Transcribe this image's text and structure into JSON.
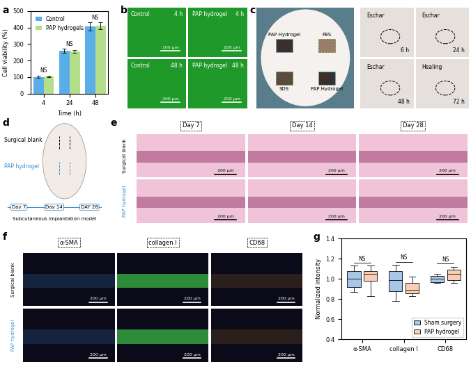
{
  "chart_data": [
    {
      "panel": "a",
      "type": "bar",
      "categories": [
        "4",
        "24",
        "48"
      ],
      "x_label": "Time (h)",
      "y_label": "Cell viability (%)",
      "ylim": [
        0,
        500
      ],
      "yticks": [
        0,
        100,
        200,
        300,
        400,
        500
      ],
      "legend": "upper left",
      "series": [
        {
          "name": "Control",
          "color": "#5aaee8",
          "values": [
            100,
            258,
            405
          ],
          "errors": [
            6,
            12,
            25
          ]
        },
        {
          "name": "PAP hydrogels",
          "color": "#b5de8c",
          "values": [
            104,
            255,
            410
          ],
          "errors": [
            6,
            10,
            20
          ]
        }
      ],
      "annotations": [
        "NS",
        "NS",
        "NS"
      ]
    },
    {
      "panel": "g",
      "type": "box",
      "categories": [
        "α-SMA",
        "collagen I",
        "CD68"
      ],
      "y_label": "Normalized intensity",
      "ylim": [
        0.4,
        1.4
      ],
      "yticks": [
        0.4,
        0.6,
        0.8,
        1.0,
        1.2,
        1.4
      ],
      "legend": "lower right",
      "series": [
        {
          "name": "Sham surgery",
          "color": "#a8c6e8",
          "boxes": [
            {
              "min": 0.87,
              "q1": 0.92,
              "median": 1.0,
              "q3": 1.08,
              "max": 1.13
            },
            {
              "min": 0.78,
              "q1": 0.88,
              "median": 0.99,
              "q3": 1.08,
              "max": 1.14
            },
            {
              "min": 0.96,
              "q1": 0.97,
              "median": 1.0,
              "q3": 1.03,
              "max": 1.05
            }
          ]
        },
        {
          "name": "PAP hydrogel",
          "color": "#f8cfb4",
          "boxes": [
            {
              "min": 0.83,
              "q1": 0.98,
              "median": 1.05,
              "q3": 1.08,
              "max": 1.13
            },
            {
              "min": 0.83,
              "q1": 0.86,
              "median": 0.89,
              "q3": 0.96,
              "max": 1.02
            },
            {
              "min": 0.96,
              "q1": 0.99,
              "median": 1.05,
              "q3": 1.09,
              "max": 1.12
            }
          ]
        }
      ],
      "annotations": [
        "NS",
        "NS",
        "NS"
      ]
    }
  ],
  "panel_b": {
    "panel": "b",
    "images": [
      {
        "group": "Control",
        "time": "4 h",
        "scale_bar": "100 μm"
      },
      {
        "group": "PAP hydrogel",
        "time": "4 h",
        "scale_bar": "100 μm"
      },
      {
        "group": "Control",
        "time": "48 h",
        "scale_bar": "200 μm"
      },
      {
        "group": "PAP hydrogel",
        "time": "48 h",
        "scale_bar": "200 μm"
      }
    ]
  },
  "panel_c": {
    "panel": "c",
    "site_labels": [
      "PAP Hydrogel",
      "PBS",
      "SDS",
      "PAP Hydrogel"
    ],
    "photos": [
      {
        "note": "Eschar",
        "time": "6 h"
      },
      {
        "note": "Eschar",
        "time": "24 h"
      },
      {
        "note": "Eschar",
        "time": "48 h"
      },
      {
        "note": "Healing",
        "time": "72 h"
      }
    ]
  },
  "panel_d": {
    "panel": "d",
    "sites": [
      "Surgical blank",
      "PAP hydrogel"
    ],
    "timeline": [
      "Day 7",
      "Day 14",
      "DAY 28"
    ],
    "caption": "Subcutaneous implantation model"
  },
  "panel_e": {
    "panel": "e",
    "columns": [
      "Day 7",
      "Day 14",
      "Day 28"
    ],
    "rows": [
      "Surgical blank",
      "PAP hydrogel"
    ],
    "scale_bar": "200 μm"
  },
  "panel_f": {
    "panel": "f",
    "columns": [
      "α-SMA",
      "collagen I",
      "CD68"
    ],
    "rows": [
      "Surgical blank",
      "PAP hydrogel"
    ],
    "scale_bar": "200 μm"
  }
}
